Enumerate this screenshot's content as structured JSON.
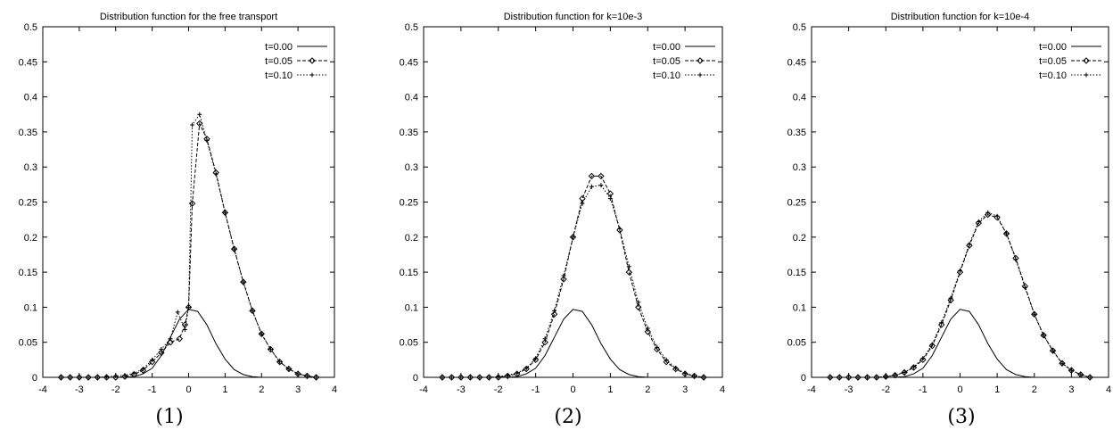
{
  "chart_data": [
    {
      "type": "line",
      "title": "Distribution function for the free transport",
      "panel_label": "(1)",
      "xlim": [
        -4,
        4
      ],
      "ylim": [
        0,
        0.5
      ],
      "xticks": [
        "-4",
        "-3",
        "-2",
        "-1",
        "0",
        "1",
        "2",
        "3",
        "4"
      ],
      "yticks": [
        "0",
        "0.05",
        "0.1",
        "0.15",
        "0.2",
        "0.25",
        "0.3",
        "0.35",
        "0.4",
        "0.45",
        "0.5"
      ],
      "legend_position": "top-right",
      "series": [
        {
          "name": "t=0.00",
          "marker": "none",
          "dash": "solid",
          "x": [
            -3.5,
            -3.25,
            -3,
            -2.75,
            -2.5,
            -2.25,
            -2,
            -1.75,
            -1.5,
            -1.25,
            -1,
            -0.75,
            -0.5,
            -0.25,
            0,
            0.25,
            0.5,
            0.75,
            1,
            1.25,
            1.5,
            1.75,
            2,
            2.25,
            2.5,
            2.75,
            3,
            3.25,
            3.5
          ],
          "y": [
            0,
            0,
            0,
            0,
            0,
            0,
            0,
            0,
            0.001,
            0.005,
            0.013,
            0.031,
            0.057,
            0.083,
            0.097,
            0.094,
            0.075,
            0.048,
            0.026,
            0.011,
            0.004,
            0.001,
            0,
            0,
            0,
            0,
            0,
            0,
            0
          ]
        },
        {
          "name": "t=0.05",
          "marker": "diamond",
          "dash": "dashed",
          "x": [
            -3.5,
            -3.25,
            -3,
            -2.75,
            -2.5,
            -2.25,
            -2,
            -1.75,
            -1.5,
            -1.25,
            -1,
            -0.75,
            -0.5,
            -0.25,
            -0.1,
            0,
            0.1,
            0.3,
            0.5,
            0.75,
            1,
            1.25,
            1.5,
            1.75,
            2,
            2.25,
            2.5,
            2.75,
            3,
            3.25,
            3.5
          ],
          "y": [
            0,
            0,
            0,
            0,
            0,
            0,
            0,
            0.001,
            0.004,
            0.01,
            0.022,
            0.035,
            0.05,
            0.055,
            0.075,
            0.1,
            0.248,
            0.362,
            0.34,
            0.292,
            0.235,
            0.183,
            0.136,
            0.095,
            0.062,
            0.04,
            0.022,
            0.012,
            0.005,
            0.002,
            0
          ]
        },
        {
          "name": "t=0.10",
          "marker": "plus",
          "dash": "dotted",
          "x": [
            -3.5,
            -3.25,
            -3,
            -2.75,
            -2.5,
            -2.25,
            -2,
            -1.75,
            -1.5,
            -1.25,
            -1,
            -0.75,
            -0.5,
            -0.3,
            -0.1,
            0,
            0.1,
            0.3,
            0.5,
            0.75,
            1,
            1.25,
            1.5,
            1.75,
            2,
            2.25,
            2.5,
            2.75,
            3,
            3.25,
            3.5
          ],
          "y": [
            0,
            0,
            0,
            0,
            0,
            0.001,
            0.002,
            0.003,
            0.006,
            0.012,
            0.025,
            0.04,
            0.055,
            0.093,
            0.068,
            0.1,
            0.36,
            0.375,
            0.338,
            0.29,
            0.235,
            0.183,
            0.136,
            0.095,
            0.062,
            0.04,
            0.022,
            0.012,
            0.005,
            0.002,
            0
          ]
        }
      ]
    },
    {
      "type": "line",
      "title": "Distribution function for k=10e-3",
      "panel_label": "(2)",
      "xlim": [
        -4,
        4
      ],
      "ylim": [
        0,
        0.5
      ],
      "xticks": [
        "-4",
        "-3",
        "-2",
        "-1",
        "0",
        "1",
        "2",
        "3",
        "4"
      ],
      "yticks": [
        "0",
        "0.05",
        "0.1",
        "0.15",
        "0.2",
        "0.25",
        "0.3",
        "0.35",
        "0.4",
        "0.45",
        "0.5"
      ],
      "legend_position": "top-right",
      "series": [
        {
          "name": "t=0.00",
          "marker": "none",
          "dash": "solid",
          "x": [
            -3.5,
            -3.25,
            -3,
            -2.75,
            -2.5,
            -2.25,
            -2,
            -1.75,
            -1.5,
            -1.25,
            -1,
            -0.75,
            -0.5,
            -0.25,
            0,
            0.25,
            0.5,
            0.75,
            1,
            1.25,
            1.5,
            1.75,
            2,
            2.25,
            2.5,
            2.75,
            3,
            3.25,
            3.5
          ],
          "y": [
            0,
            0,
            0,
            0,
            0,
            0,
            0,
            0,
            0.001,
            0.005,
            0.013,
            0.031,
            0.057,
            0.083,
            0.097,
            0.094,
            0.075,
            0.048,
            0.026,
            0.011,
            0.004,
            0.001,
            0,
            0,
            0,
            0,
            0,
            0,
            0
          ]
        },
        {
          "name": "t=0.05",
          "marker": "diamond",
          "dash": "dashed",
          "x": [
            -3.5,
            -3.25,
            -3,
            -2.75,
            -2.5,
            -2.25,
            -2,
            -1.75,
            -1.5,
            -1.25,
            -1,
            -0.75,
            -0.5,
            -0.25,
            0,
            0.25,
            0.5,
            0.75,
            1,
            1.25,
            1.5,
            1.75,
            2,
            2.25,
            2.5,
            2.75,
            3,
            3.25,
            3.5
          ],
          "y": [
            0,
            0,
            0,
            0,
            0,
            0,
            0,
            0.002,
            0.005,
            0.012,
            0.025,
            0.05,
            0.09,
            0.14,
            0.2,
            0.255,
            0.287,
            0.287,
            0.262,
            0.21,
            0.15,
            0.1,
            0.065,
            0.04,
            0.022,
            0.012,
            0.005,
            0.002,
            0
          ]
        },
        {
          "name": "t=0.10",
          "marker": "plus",
          "dash": "dotted",
          "x": [
            -3.5,
            -3.25,
            -3,
            -2.75,
            -2.5,
            -2.25,
            -2,
            -1.75,
            -1.5,
            -1.25,
            -1,
            -0.75,
            -0.5,
            -0.25,
            0,
            0.25,
            0.5,
            0.75,
            1,
            1.25,
            1.5,
            1.75,
            2,
            2.25,
            2.5,
            2.75,
            3,
            3.25,
            3.5
          ],
          "y": [
            0,
            0,
            0,
            0,
            0,
            0,
            0.001,
            0.003,
            0.006,
            0.013,
            0.027,
            0.055,
            0.095,
            0.145,
            0.2,
            0.248,
            0.272,
            0.274,
            0.255,
            0.212,
            0.158,
            0.107,
            0.07,
            0.043,
            0.025,
            0.013,
            0.006,
            0.002,
            0
          ]
        }
      ]
    },
    {
      "type": "line",
      "title": "Distribution function for k=10e-4",
      "panel_label": "(3)",
      "xlim": [
        -4,
        4
      ],
      "ylim": [
        0,
        0.5
      ],
      "xticks": [
        "-4",
        "-3",
        "-2",
        "-1",
        "0",
        "1",
        "2",
        "3",
        "4"
      ],
      "yticks": [
        "0",
        "0.05",
        "0.1",
        "0.15",
        "0.2",
        "0.25",
        "0.3",
        "0.35",
        "0.4",
        "0.45",
        "0.5"
      ],
      "legend_position": "top-right",
      "series": [
        {
          "name": "t=0.00",
          "marker": "none",
          "dash": "solid",
          "x": [
            -3.5,
            -3.25,
            -3,
            -2.75,
            -2.5,
            -2.25,
            -2,
            -1.75,
            -1.5,
            -1.25,
            -1,
            -0.75,
            -0.5,
            -0.25,
            0,
            0.25,
            0.5,
            0.75,
            1,
            1.25,
            1.5,
            1.75,
            2,
            2.25,
            2.5,
            2.75,
            3,
            3.25,
            3.5
          ],
          "y": [
            0,
            0,
            0,
            0,
            0,
            0,
            0,
            0,
            0.001,
            0.005,
            0.013,
            0.031,
            0.057,
            0.083,
            0.097,
            0.094,
            0.075,
            0.048,
            0.026,
            0.011,
            0.004,
            0.001,
            0,
            0,
            0,
            0,
            0,
            0,
            0
          ]
        },
        {
          "name": "t=0.05",
          "marker": "diamond",
          "dash": "dashed",
          "x": [
            -3.5,
            -3.25,
            -3,
            -2.75,
            -2.5,
            -2.25,
            -2,
            -1.75,
            -1.5,
            -1.25,
            -1,
            -0.75,
            -0.5,
            -0.25,
            0,
            0.25,
            0.5,
            0.75,
            1,
            1.25,
            1.5,
            1.75,
            2,
            2.25,
            2.5,
            2.75,
            3,
            3.25,
            3.5
          ],
          "y": [
            0,
            0,
            0,
            0,
            0,
            0,
            0.001,
            0.003,
            0.007,
            0.014,
            0.025,
            0.045,
            0.075,
            0.11,
            0.15,
            0.188,
            0.22,
            0.232,
            0.228,
            0.205,
            0.17,
            0.13,
            0.09,
            0.06,
            0.038,
            0.02,
            0.01,
            0.004,
            0
          ]
        },
        {
          "name": "t=0.10",
          "marker": "plus",
          "dash": "dotted",
          "x": [
            -3.5,
            -3.25,
            -3,
            -2.75,
            -2.5,
            -2.25,
            -2,
            -1.75,
            -1.5,
            -1.25,
            -1,
            -0.75,
            -0.5,
            -0.25,
            0,
            0.25,
            0.5,
            0.75,
            1,
            1.25,
            1.5,
            1.75,
            2,
            2.25,
            2.5,
            2.75,
            3,
            3.25,
            3.5
          ],
          "y": [
            0,
            0,
            0,
            0,
            0,
            0,
            0.001,
            0.003,
            0.007,
            0.015,
            0.027,
            0.047,
            0.078,
            0.113,
            0.152,
            0.19,
            0.222,
            0.235,
            0.23,
            0.205,
            0.168,
            0.128,
            0.09,
            0.06,
            0.038,
            0.02,
            0.01,
            0.004,
            0
          ]
        }
      ]
    }
  ]
}
